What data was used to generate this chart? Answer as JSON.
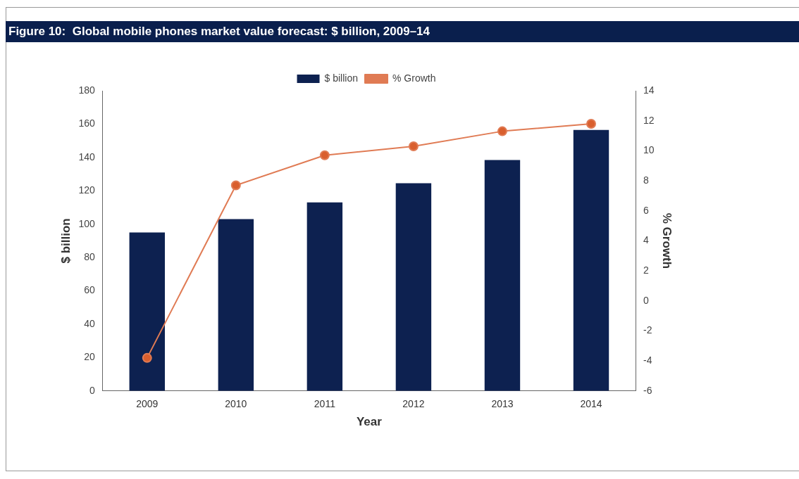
{
  "chart_data": {
    "type": "bar",
    "title": "Figure 10:  Global mobile phones market value forecast: $ billion, 2009–14",
    "xlabel": "Year",
    "ylabel": "$ billion",
    "y2label": "% Growth",
    "categories": [
      "2009",
      "2010",
      "2011",
      "2012",
      "2013",
      "2014"
    ],
    "series": [
      {
        "name": "$ billion",
        "color": "#0d2150",
        "values": [
          95,
          103,
          113,
          124.5,
          138.5,
          156.5
        ]
      },
      {
        "name": "% Growth",
        "type": "line",
        "axis": "y2",
        "color": "#e07b54",
        "values": [
          -3.8,
          7.7,
          9.7,
          10.3,
          11.3,
          11.8
        ]
      }
    ],
    "ylim": [
      0,
      180
    ],
    "yticks": [
      0,
      20,
      40,
      60,
      80,
      100,
      120,
      140,
      160,
      180
    ],
    "y2lim": [
      -6,
      14
    ],
    "y2ticks": [
      -6,
      -4,
      -2,
      0,
      2,
      4,
      6,
      8,
      10,
      12,
      14
    ],
    "legend": "top",
    "marker": "circle"
  }
}
